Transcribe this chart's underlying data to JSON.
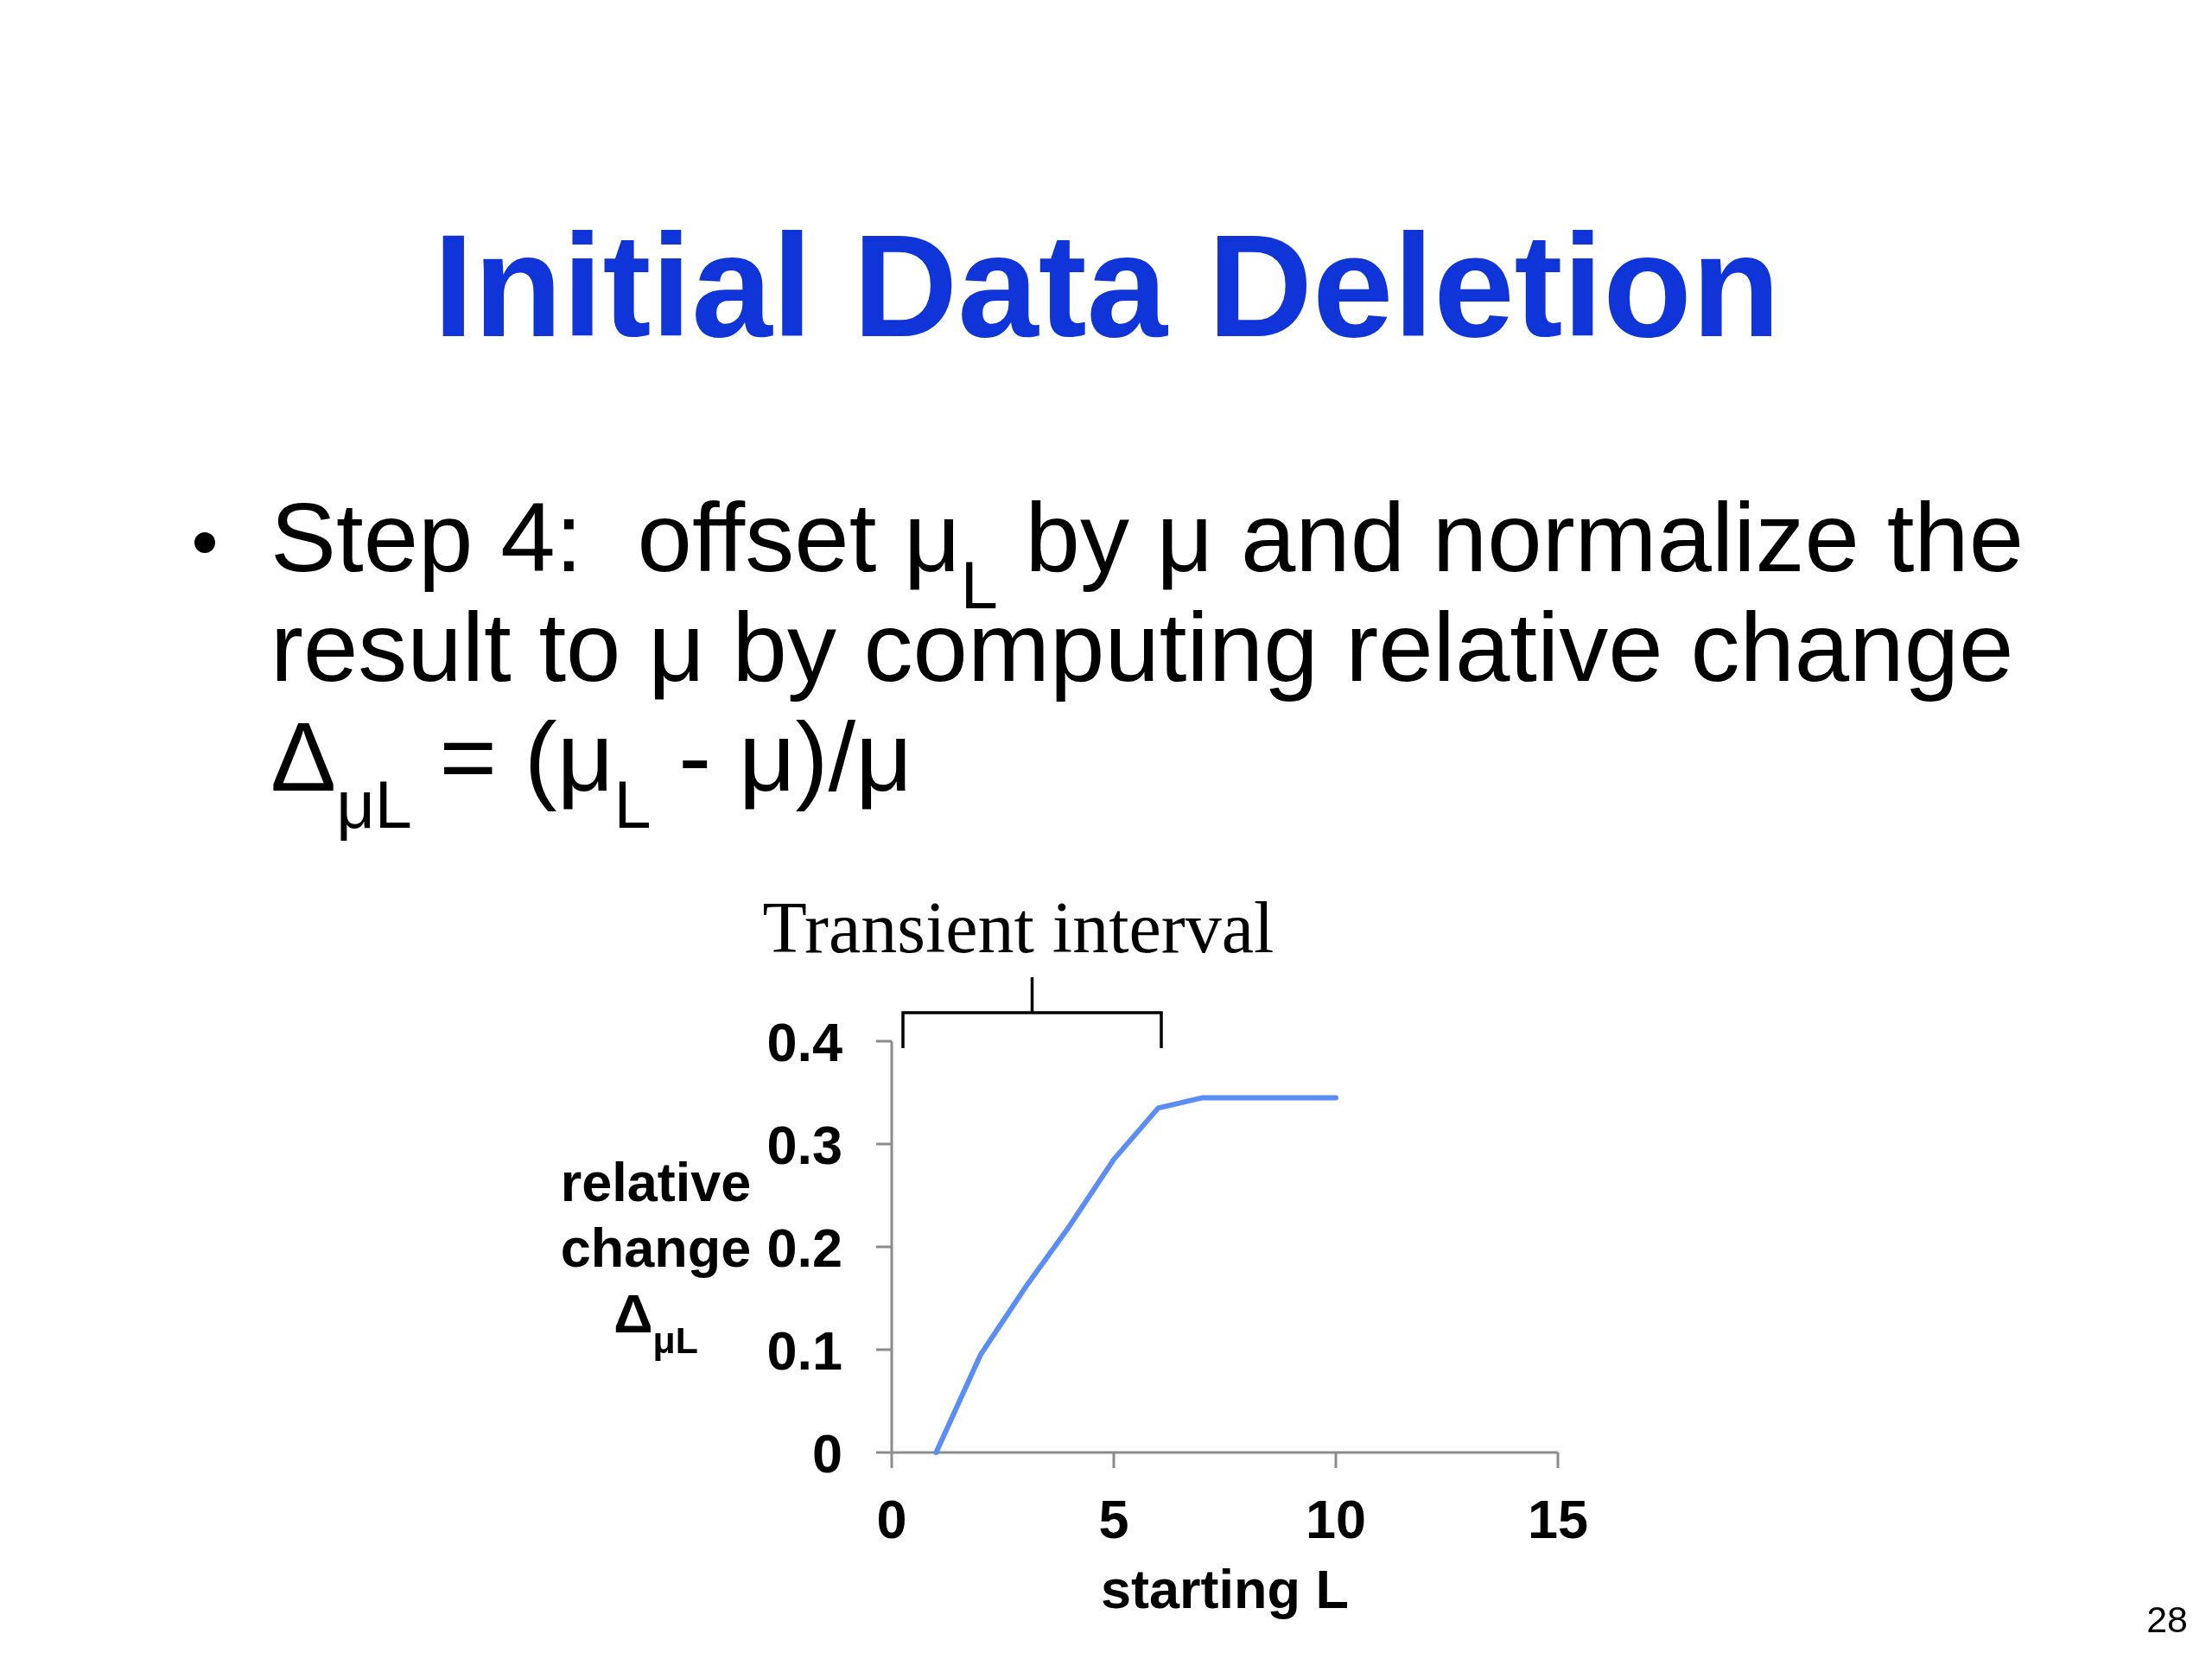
{
  "chart_data": {
    "type": "line",
    "title": "Initial Data Deletion",
    "subtitle": "Step 4:  offset μ$_{L}$ by μ and normalize the result to μ by computing relative change Δ$_{μL}$ = (μ$_{L}$ - μ)/μ",
    "xlabel": "starting L",
    "ylabel": "relative change Δ$_{μL}$",
    "x": [
      1,
      2,
      3,
      4,
      5,
      6,
      7,
      8,
      9,
      10
    ],
    "series": [
      {
        "color": "#5a8ef5",
        "values": [
          0,
          0.095,
          0.16,
          0.22,
          0.285,
          0.335,
          0.345,
          0.345,
          0.345,
          0.345
        ]
      }
    ],
    "xlim": [
      0,
      15
    ],
    "ylim": [
      0,
      0.4
    ],
    "xticks": [
      0,
      5,
      10,
      15
    ],
    "yticks": [
      0,
      0.1,
      0.2,
      0.3,
      0.4
    ],
    "annotations": [
      "Transient interval",
      "28"
    ]
  }
}
